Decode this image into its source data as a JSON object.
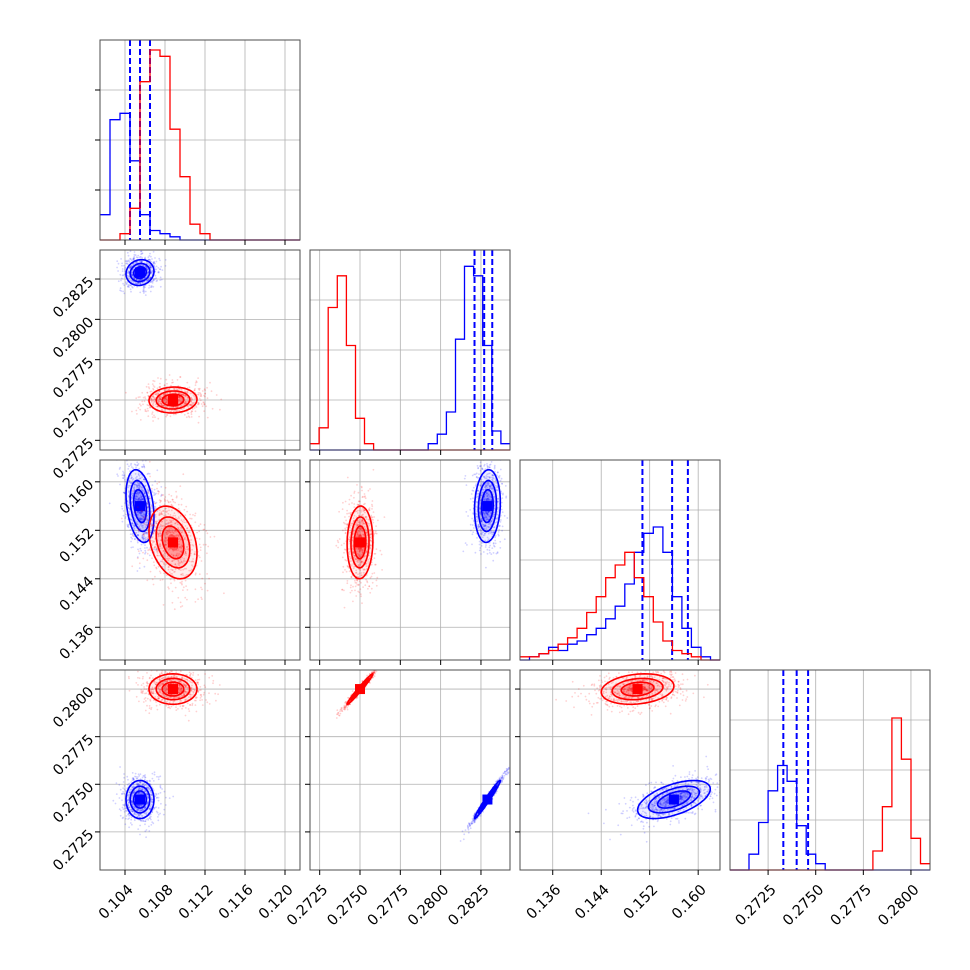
{
  "chart_data": {
    "type": "corner",
    "title": "",
    "grid": true,
    "parameters": [
      {
        "range": [
          0.1015,
          0.1215
        ],
        "ticks": [
          "0.104",
          "0.108",
          "0.112",
          "0.116",
          "0.120"
        ],
        "tick_values": [
          0.104,
          0.108,
          0.112,
          0.116,
          0.12
        ]
      },
      {
        "range": [
          0.2719,
          0.2843
        ],
        "ticks": [
          "0.2725",
          "0.2750",
          "0.2775",
          "0.2800",
          "0.2825"
        ],
        "tick_values": [
          0.2725,
          0.275,
          0.2775,
          0.28,
          0.2825
        ]
      },
      {
        "range": [
          0.1306,
          0.1636
        ],
        "ticks": [
          "0.136",
          "0.144",
          "0.152",
          "0.160"
        ],
        "tick_values": [
          0.136,
          0.144,
          0.152,
          0.16
        ]
      },
      {
        "range": [
          0.2705,
          0.281
        ],
        "ticks": [
          "0.2725",
          "0.2750",
          "0.2775",
          "0.2800"
        ],
        "tick_values": [
          0.2725,
          0.275,
          0.2775,
          0.28
        ]
      }
    ],
    "colors": {
      "series_a": "#0000ff",
      "series_b": "#ff0000",
      "grid": "#b0b0b0"
    },
    "series": [
      {
        "color": "#0000ff",
        "mean": [
          0.1055,
          0.2829,
          0.156,
          0.2742
        ],
        "std": [
          0.0007,
          0.0004,
          0.003,
          0.0005
        ],
        "corr": [
          [
            0,
            1,
            0.1
          ],
          [
            0,
            2,
            -0.3
          ],
          [
            1,
            2,
            0.1
          ],
          [
            0,
            3,
            0.0
          ],
          [
            1,
            3,
            0.98
          ],
          [
            2,
            3,
            0.55
          ]
        ],
        "quantiles": [
          [
            0.1045,
            0.1055,
            0.1065
          ],
          [
            0.2821,
            0.2827,
            0.2832
          ],
          [
            0.1508,
            0.1557,
            0.1583
          ],
          [
            0.2733,
            0.274,
            0.2746
          ]
        ],
        "hist": [
          [
            0.08,
            0.38,
            0.4,
            0.25,
            0.08,
            0.03,
            0.02,
            0.01,
            0,
            0,
            0,
            0,
            0,
            0,
            0,
            0,
            0,
            0,
            0,
            0
          ],
          [
            0,
            0,
            0,
            0,
            0,
            0,
            0,
            0,
            0,
            0,
            0,
            0,
            0,
            0.02,
            0.05,
            0.12,
            0.35,
            0.58,
            0.55,
            0.33,
            0.06,
            0.02
          ],
          [
            0,
            0.01,
            0.02,
            0.04,
            0.03,
            0.05,
            0.06,
            0.08,
            0.1,
            0.13,
            0.17,
            0.24,
            0.34,
            0.4,
            0.42,
            0.34,
            0.2,
            0.1,
            0.04,
            0.01,
            0
          ],
          [
            0,
            0,
            0.05,
            0.15,
            0.25,
            0.33,
            0.28,
            0.14,
            0.05,
            0.02,
            0,
            0,
            0,
            0,
            0,
            0,
            0,
            0,
            0,
            0,
            0
          ]
        ]
      },
      {
        "color": "#ff0000",
        "mean": [
          0.1088,
          0.275,
          0.15,
          0.28
        ],
        "std": [
          0.0012,
          0.0004,
          0.003,
          0.0004
        ],
        "corr": [
          [
            0,
            1,
            0.05
          ],
          [
            0,
            2,
            -0.3
          ],
          [
            1,
            2,
            0.05
          ],
          [
            0,
            3,
            0.0
          ],
          [
            1,
            3,
            0.98
          ],
          [
            2,
            3,
            0.2
          ]
        ],
        "quantiles": null,
        "hist": [
          [
            0,
            0,
            0.02,
            0.1,
            0.5,
            0.6,
            0.58,
            0.35,
            0.2,
            0.05,
            0.02,
            0,
            0,
            0,
            0,
            0,
            0,
            0,
            0,
            0
          ],
          [
            0.02,
            0.07,
            0.45,
            0.55,
            0.33,
            0.1,
            0.02,
            0,
            0,
            0,
            0,
            0,
            0,
            0,
            0,
            0,
            0,
            0,
            0,
            0,
            0,
            0
          ],
          [
            0.01,
            0.01,
            0.02,
            0.03,
            0.05,
            0.07,
            0.1,
            0.15,
            0.2,
            0.26,
            0.3,
            0.34,
            0.26,
            0.2,
            0.12,
            0.06,
            0.03,
            0.02,
            0.01,
            0,
            0
          ],
          [
            0,
            0,
            0,
            0,
            0,
            0,
            0,
            0,
            0,
            0,
            0,
            0,
            0,
            0,
            0,
            0.06,
            0.2,
            0.48,
            0.35,
            0.1,
            0.02
          ]
        ]
      }
    ]
  }
}
